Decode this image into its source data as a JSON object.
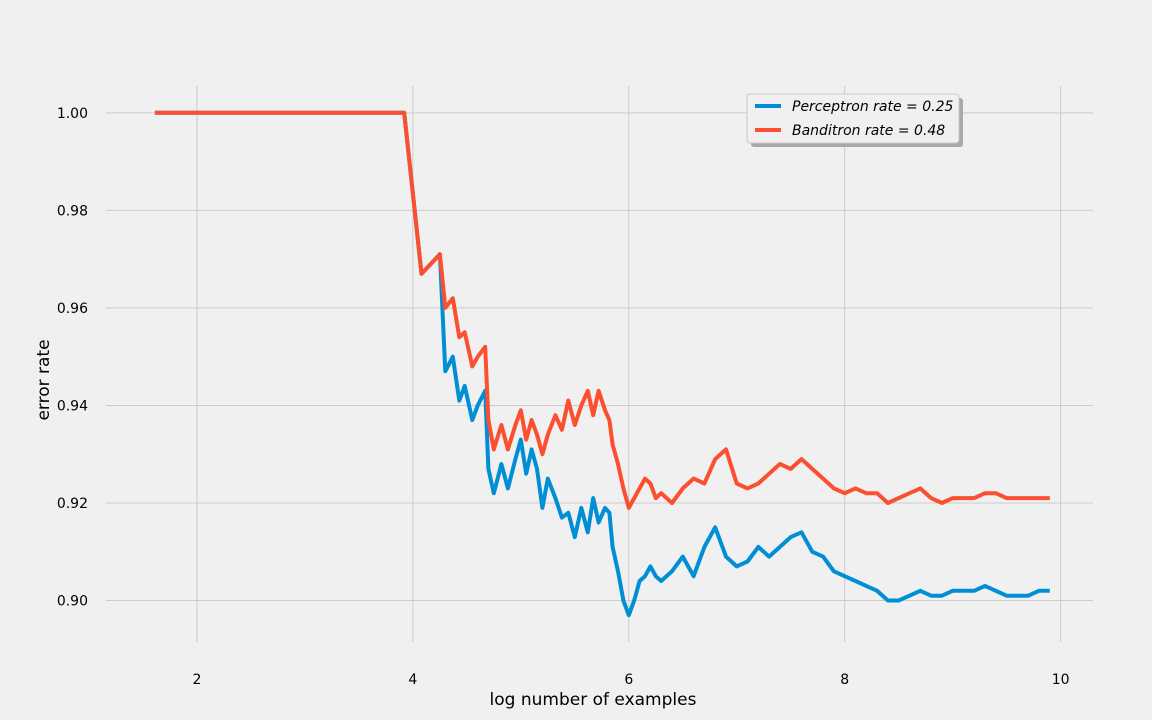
{
  "chart_data": {
    "type": "line",
    "title": "",
    "xlabel": "log number of examples",
    "ylabel": "error rate",
    "xlim": [
      1.25,
      10.3
    ],
    "ylim": [
      0.8915,
      1.0055
    ],
    "xticks": [
      2,
      4,
      6,
      8,
      10
    ],
    "xtick_labels": [
      "2",
      "4",
      "6",
      "8",
      "10"
    ],
    "yticks": [
      0.9,
      0.92,
      0.94,
      0.96,
      0.98,
      1.0
    ],
    "ytick_labels": [
      "0.90",
      "0.92",
      "0.94",
      "0.96",
      "0.98",
      "1.00"
    ],
    "grid": true,
    "legend": "top-right",
    "series": [
      {
        "name": "Perceptron",
        "legend_label": "Perceptron  rate = 0.25",
        "rate": 0.25,
        "color": "#008fd5",
        "x": [
          1.61,
          3.0,
          3.92,
          4.08,
          4.25,
          4.3,
          4.37,
          4.43,
          4.48,
          4.55,
          4.6,
          4.67,
          4.7,
          4.75,
          4.82,
          4.88,
          4.95,
          5.0,
          5.05,
          5.1,
          5.15,
          5.2,
          5.25,
          5.32,
          5.38,
          5.44,
          5.5,
          5.56,
          5.62,
          5.67,
          5.72,
          5.78,
          5.82,
          5.85,
          5.9,
          5.95,
          6.0,
          6.05,
          6.1,
          6.15,
          6.2,
          6.25,
          6.3,
          6.4,
          6.5,
          6.6,
          6.7,
          6.8,
          6.9,
          7.0,
          7.1,
          7.2,
          7.3,
          7.4,
          7.5,
          7.6,
          7.7,
          7.8,
          7.9,
          8.0,
          8.1,
          8.2,
          8.3,
          8.4,
          8.5,
          8.6,
          8.7,
          8.8,
          8.9,
          9.0,
          9.1,
          9.2,
          9.3,
          9.4,
          9.5,
          9.6,
          9.7,
          9.8,
          9.9
        ],
        "y": [
          1.0,
          1.0,
          1.0,
          0.967,
          0.971,
          0.947,
          0.95,
          0.941,
          0.944,
          0.937,
          0.94,
          0.943,
          0.927,
          0.922,
          0.928,
          0.923,
          0.929,
          0.933,
          0.926,
          0.931,
          0.927,
          0.919,
          0.925,
          0.921,
          0.917,
          0.918,
          0.913,
          0.919,
          0.914,
          0.921,
          0.916,
          0.919,
          0.918,
          0.911,
          0.906,
          0.9,
          0.897,
          0.9,
          0.904,
          0.905,
          0.907,
          0.905,
          0.904,
          0.906,
          0.909,
          0.905,
          0.911,
          0.915,
          0.909,
          0.907,
          0.908,
          0.911,
          0.909,
          0.911,
          0.913,
          0.914,
          0.91,
          0.909,
          0.906,
          0.905,
          0.904,
          0.903,
          0.902,
          0.9,
          0.9,
          0.901,
          0.902,
          0.901,
          0.901,
          0.902,
          0.902,
          0.902,
          0.903,
          0.902,
          0.901,
          0.901,
          0.901,
          0.902,
          0.902
        ]
      },
      {
        "name": "Banditron",
        "legend_label": "Banditron  rate = 0.48",
        "rate": 0.48,
        "color": "#fc4f30",
        "x": [
          1.61,
          3.0,
          3.92,
          4.08,
          4.25,
          4.3,
          4.37,
          4.43,
          4.48,
          4.55,
          4.6,
          4.67,
          4.7,
          4.75,
          4.82,
          4.88,
          4.95,
          5.0,
          5.05,
          5.1,
          5.15,
          5.2,
          5.25,
          5.32,
          5.38,
          5.44,
          5.5,
          5.56,
          5.62,
          5.67,
          5.72,
          5.78,
          5.82,
          5.85,
          5.9,
          5.95,
          6.0,
          6.05,
          6.1,
          6.15,
          6.2,
          6.25,
          6.3,
          6.4,
          6.5,
          6.6,
          6.7,
          6.8,
          6.9,
          7.0,
          7.1,
          7.2,
          7.3,
          7.4,
          7.5,
          7.6,
          7.7,
          7.8,
          7.9,
          8.0,
          8.1,
          8.2,
          8.3,
          8.4,
          8.5,
          8.6,
          8.7,
          8.8,
          8.9,
          9.0,
          9.1,
          9.2,
          9.3,
          9.4,
          9.5,
          9.6,
          9.7,
          9.8,
          9.9
        ],
        "y": [
          1.0,
          1.0,
          1.0,
          0.967,
          0.971,
          0.96,
          0.962,
          0.954,
          0.955,
          0.948,
          0.95,
          0.952,
          0.937,
          0.931,
          0.936,
          0.931,
          0.936,
          0.939,
          0.933,
          0.937,
          0.934,
          0.93,
          0.934,
          0.938,
          0.935,
          0.941,
          0.936,
          0.94,
          0.943,
          0.938,
          0.943,
          0.939,
          0.937,
          0.932,
          0.928,
          0.923,
          0.919,
          0.921,
          0.923,
          0.925,
          0.924,
          0.921,
          0.922,
          0.92,
          0.923,
          0.925,
          0.924,
          0.929,
          0.931,
          0.924,
          0.923,
          0.924,
          0.926,
          0.928,
          0.927,
          0.929,
          0.927,
          0.925,
          0.923,
          0.922,
          0.923,
          0.922,
          0.922,
          0.92,
          0.921,
          0.922,
          0.923,
          0.921,
          0.92,
          0.921,
          0.921,
          0.921,
          0.922,
          0.922,
          0.921,
          0.921,
          0.921,
          0.921,
          0.921
        ]
      }
    ]
  }
}
